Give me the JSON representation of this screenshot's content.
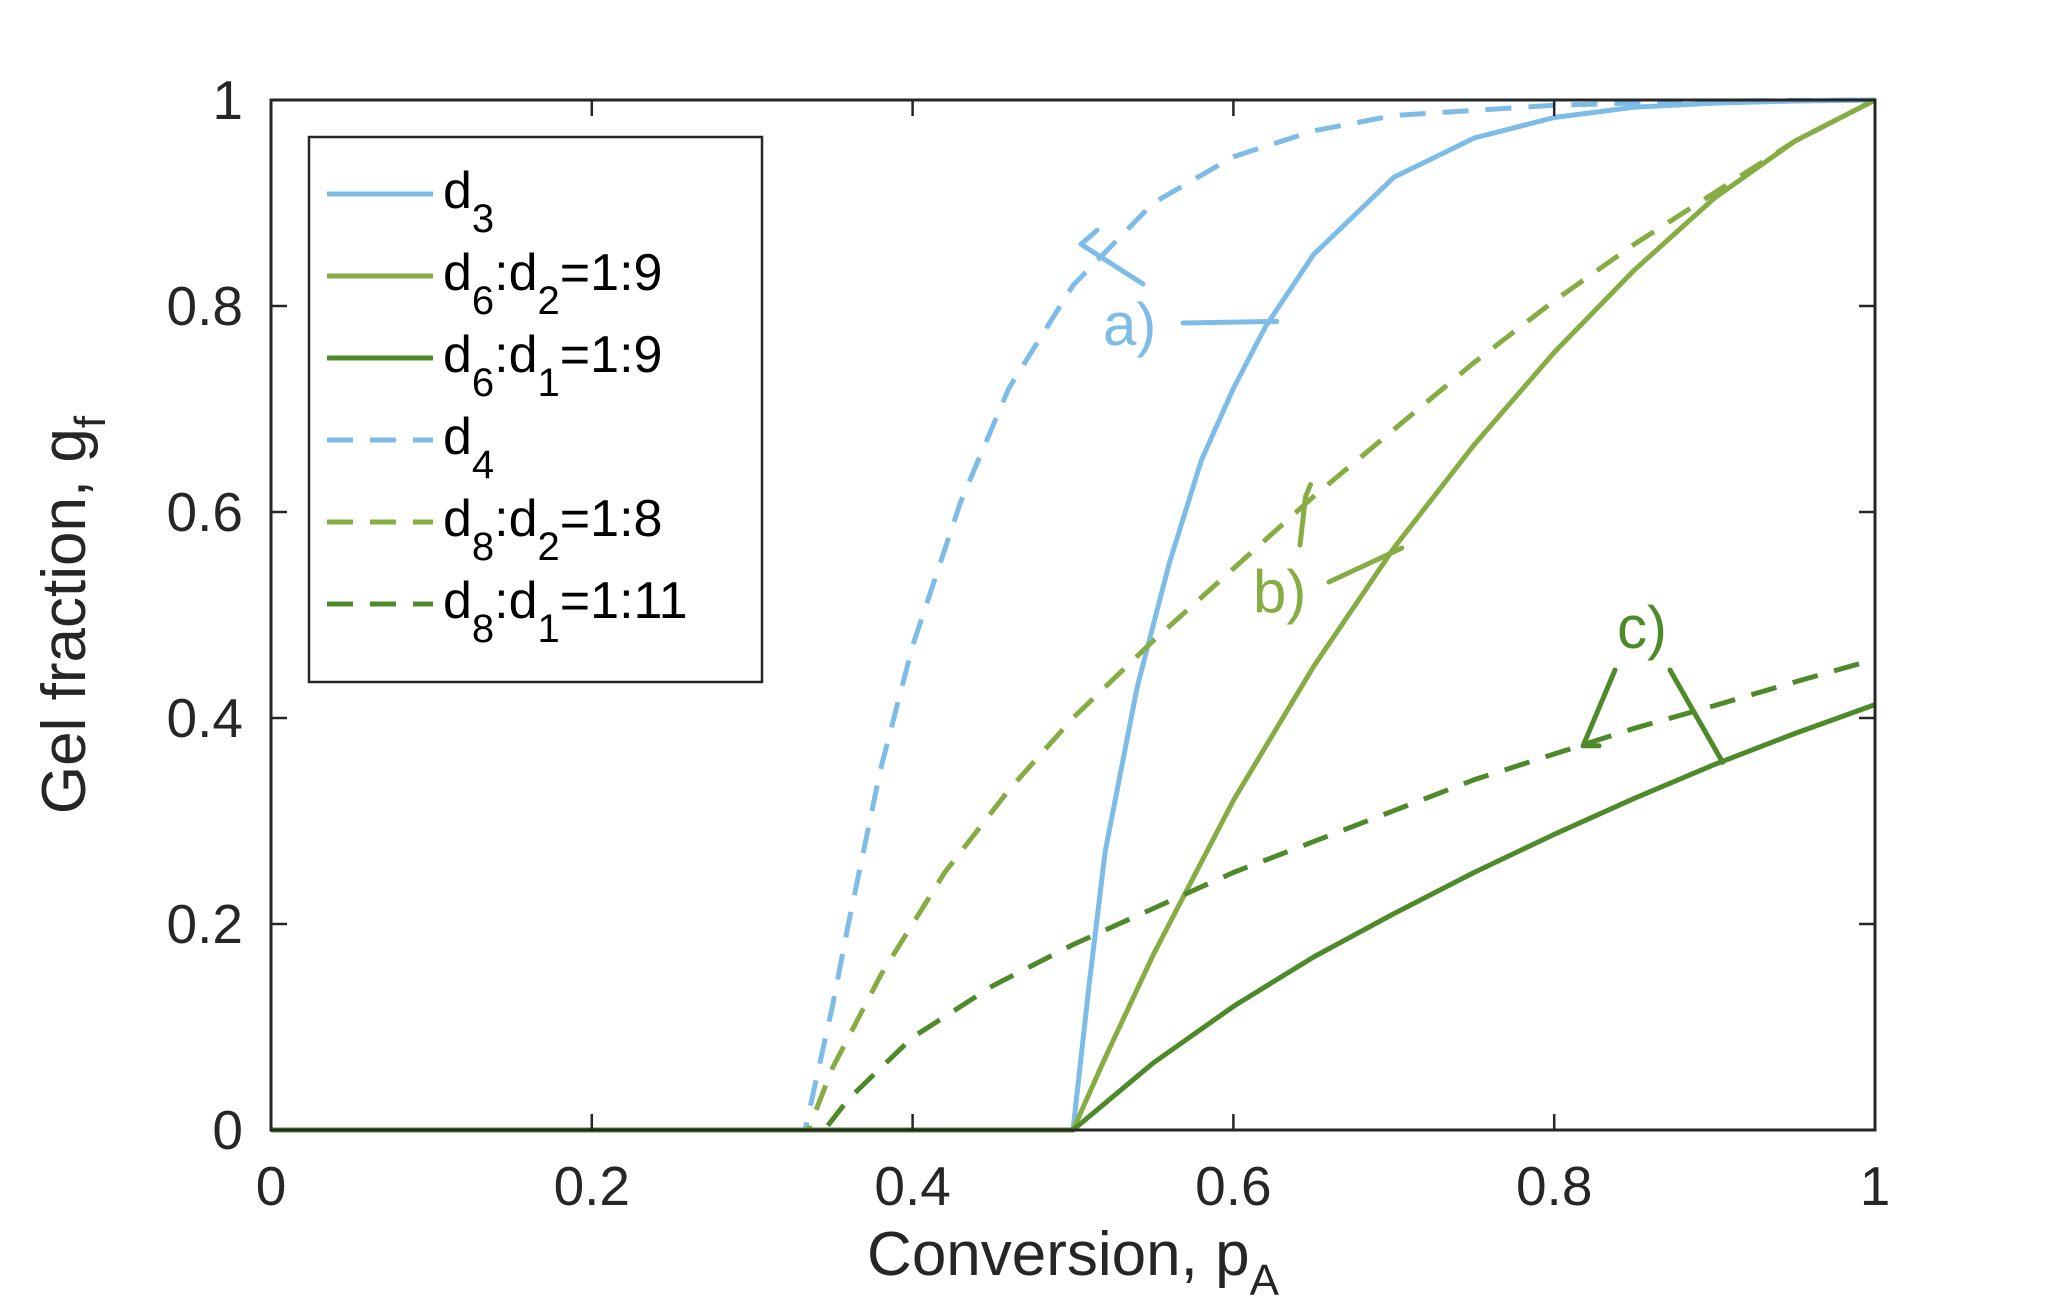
{
  "chart_data": {
    "type": "line",
    "xlabel": {
      "main": "Conversion, p",
      "sub": "A"
    },
    "ylabel": {
      "main": "Gel fraction, g",
      "sub": "f"
    },
    "xlim": [
      0,
      1
    ],
    "ylim": [
      0,
      1
    ],
    "xticks": [
      "0",
      "0.2",
      "0.4",
      "0.6",
      "0.8",
      "1"
    ],
    "yticks": [
      "0",
      "0.2",
      "0.4",
      "0.6",
      "0.8",
      "1"
    ],
    "grid": false,
    "legend_position": "top-left",
    "colors": {
      "light_blue": "#7dbce6",
      "light_green": "#86ad43",
      "dark_green": "#4e8a2a"
    },
    "series": [
      {
        "legend": [
          {
            "t": "d"
          },
          {
            "t": "3",
            "sub": true
          }
        ],
        "color": "#7dbce6",
        "dash": "solid",
        "x": [
          0,
          0.5,
          0.51,
          0.52,
          0.54,
          0.56,
          0.58,
          0.6,
          0.62,
          0.65,
          0.7,
          0.75,
          0.8,
          0.85,
          0.9,
          0.95,
          1.0
        ],
        "y": [
          0,
          0,
          0.14,
          0.27,
          0.43,
          0.55,
          0.65,
          0.72,
          0.78,
          0.85,
          0.925,
          0.963,
          0.983,
          0.993,
          0.997,
          0.999,
          1.0
        ]
      },
      {
        "legend": [
          {
            "t": "d"
          },
          {
            "t": "6",
            "sub": true
          },
          {
            "t": ":d"
          },
          {
            "t": "2",
            "sub": true
          },
          {
            "t": "=1:9"
          }
        ],
        "color": "#86ad43",
        "dash": "solid",
        "x": [
          0,
          0.5,
          0.52,
          0.55,
          0.6,
          0.65,
          0.7,
          0.75,
          0.8,
          0.85,
          0.9,
          0.95,
          1.0
        ],
        "y": [
          0,
          0,
          0.07,
          0.17,
          0.32,
          0.45,
          0.565,
          0.665,
          0.755,
          0.835,
          0.905,
          0.96,
          1.0
        ]
      },
      {
        "legend": [
          {
            "t": "d"
          },
          {
            "t": "6",
            "sub": true
          },
          {
            "t": ":d"
          },
          {
            "t": "1",
            "sub": true
          },
          {
            "t": "=1:9"
          }
        ],
        "color": "#4e8a2a",
        "dash": "solid",
        "x": [
          0,
          0.5,
          0.55,
          0.6,
          0.65,
          0.7,
          0.75,
          0.8,
          0.85,
          0.9,
          0.95,
          1.0
        ],
        "y": [
          0,
          0,
          0.065,
          0.12,
          0.168,
          0.21,
          0.25,
          0.287,
          0.322,
          0.355,
          0.385,
          0.413
        ]
      },
      {
        "legend": [
          {
            "t": "d"
          },
          {
            "t": "4",
            "sub": true
          }
        ],
        "color": "#7dbce6",
        "dash": "dashed",
        "x": [
          0,
          0.333,
          0.34,
          0.35,
          0.36,
          0.38,
          0.4,
          0.43,
          0.46,
          0.5,
          0.55,
          0.6,
          0.65,
          0.7,
          0.8,
          0.9,
          1.0
        ],
        "y": [
          0,
          0,
          0.05,
          0.12,
          0.2,
          0.35,
          0.47,
          0.61,
          0.72,
          0.82,
          0.9,
          0.945,
          0.97,
          0.985,
          0.995,
          0.999,
          1.0
        ]
      },
      {
        "legend": [
          {
            "t": "d"
          },
          {
            "t": "8",
            "sub": true
          },
          {
            "t": ":d"
          },
          {
            "t": "2",
            "sub": true
          },
          {
            "t": "=1:8"
          }
        ],
        "color": "#86ad43",
        "dash": "dashed",
        "x": [
          0,
          0.335,
          0.35,
          0.38,
          0.42,
          0.46,
          0.5,
          0.55,
          0.6,
          0.65,
          0.7,
          0.75,
          0.8,
          0.85,
          0.9,
          0.95,
          1.0
        ],
        "y": [
          0,
          0,
          0.06,
          0.15,
          0.25,
          0.33,
          0.4,
          0.475,
          0.545,
          0.615,
          0.68,
          0.745,
          0.805,
          0.86,
          0.91,
          0.96,
          1.0
        ]
      },
      {
        "legend": [
          {
            "t": "d"
          },
          {
            "t": "8",
            "sub": true
          },
          {
            "t": ":d"
          },
          {
            "t": "1",
            "sub": true
          },
          {
            "t": "=1:11"
          }
        ],
        "color": "#4e8a2a",
        "dash": "dashed",
        "x": [
          0,
          0.345,
          0.36,
          0.4,
          0.45,
          0.5,
          0.55,
          0.6,
          0.65,
          0.7,
          0.75,
          0.8,
          0.85,
          0.9,
          0.95,
          1.0
        ],
        "y": [
          0,
          0,
          0.03,
          0.09,
          0.14,
          0.18,
          0.215,
          0.25,
          0.28,
          0.31,
          0.34,
          0.365,
          0.39,
          0.412,
          0.435,
          0.457
        ]
      }
    ],
    "annotations": [
      {
        "text": "a)",
        "color": "#7dbce6"
      },
      {
        "text": "b)",
        "color": "#86ad43"
      },
      {
        "text": "c)",
        "color": "#4e8a2a"
      }
    ]
  }
}
